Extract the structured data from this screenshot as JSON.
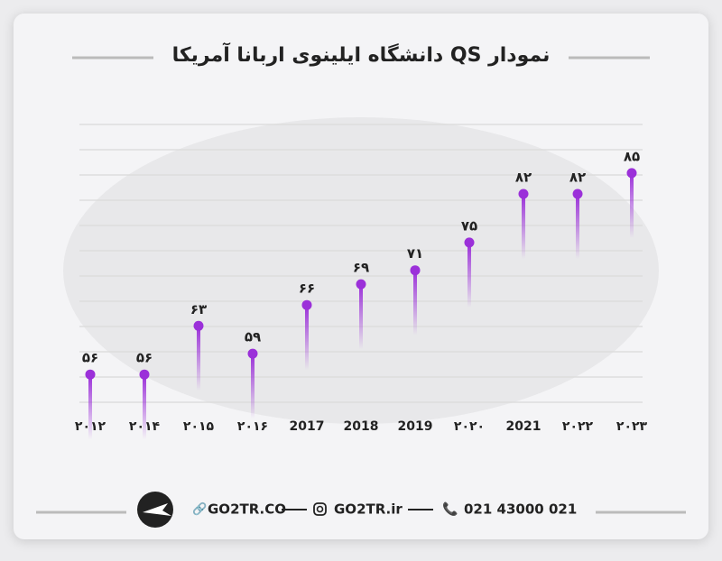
{
  "chart_data": {
    "type": "lollipop",
    "title": "نمودار QS دانشگاه ایلینوی اربانا آمریکا",
    "categories": [
      "۲۰۱۲",
      "۲۰۱۴",
      "۲۰۱۵",
      "۲۰۱۶",
      "2017",
      "2018",
      "2019",
      "۲۰۲۰",
      "2021",
      "۲۰۲۲",
      "۲۰۲۳"
    ],
    "values": [
      56,
      56,
      63,
      59,
      66,
      69,
      71,
      75,
      82,
      82,
      85
    ],
    "value_labels": [
      "۵۶",
      "۵۶",
      "۶۳",
      "۵۹",
      "۶۶",
      "۶۹",
      "۷۱",
      "۷۵",
      "۸۲",
      "۸۲",
      "۸۵"
    ],
    "color": "#9b30d9",
    "ylim": [
      52,
      92
    ]
  },
  "footer": {
    "website": "GO2TR.CO",
    "instagram": "GO2TR.ir",
    "phone": "021 43000 021"
  }
}
